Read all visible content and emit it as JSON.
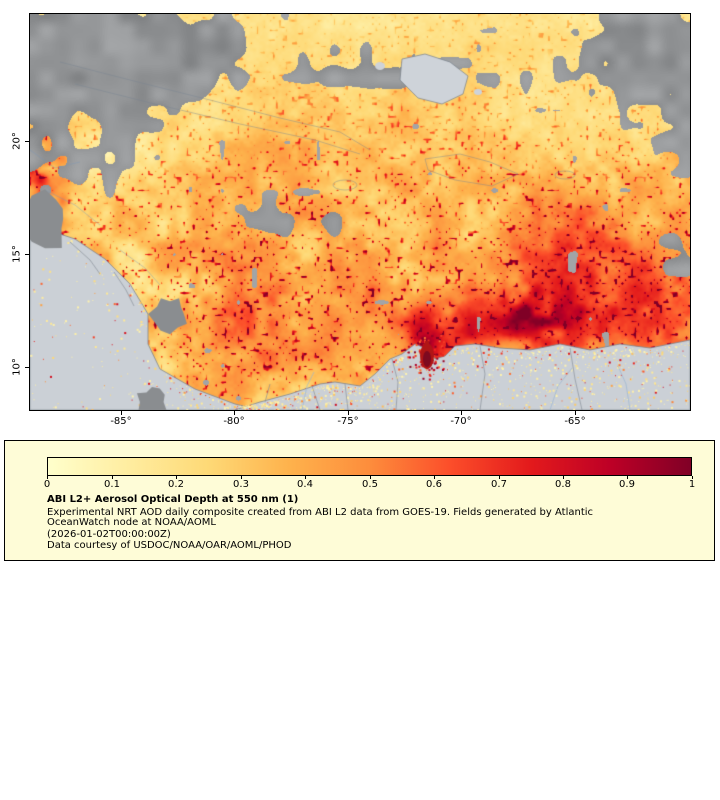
{
  "map": {
    "x_ticks": [
      "-85°",
      "-80°",
      "-75°",
      "-70°",
      "-65°"
    ],
    "y_ticks": [
      "20°",
      "15°",
      "10°"
    ]
  },
  "legend": {
    "title": "ABI L2+ Aerosol Optical Depth at 550 nm (1)",
    "description_line1": "Experimental NRT AOD daily composite created from ABI L2 data from GOES-19. Fields generated by Atlantic",
    "description_line2": "OceanWatch node at NOAA/AOML",
    "timestamp": "(2026-01-02T00:00:00Z)",
    "courtesy": "Data courtesy of USDOC/NOAA/OAR/AOML/PHOD",
    "colorbar_ticks": [
      "0",
      "0.1",
      "0.2",
      "0.3",
      "0.4",
      "0.5",
      "0.6",
      "0.7",
      "0.8",
      "0.9",
      "1"
    ]
  },
  "colors": {
    "legend_background": "#fefcd7",
    "no_data_gray": "#8a8d90",
    "land_gray": "#cbd0d6"
  },
  "chart_data": {
    "type": "heatmap",
    "title": "ABI L2+ Aerosol Optical Depth at 550 nm (1)",
    "value_range": [
      0,
      1
    ],
    "colorbar_tick_values": [
      0,
      0.1,
      0.2,
      0.3,
      0.4,
      0.5,
      0.6,
      0.7,
      0.8,
      0.9,
      1
    ],
    "colormap_stops": [
      "#ffffcc",
      "#ffeda0",
      "#fed976",
      "#feb24c",
      "#fd8d3c",
      "#fc4e2a",
      "#e31a1c",
      "#bd0026",
      "#800026"
    ],
    "x_axis_ticks": [
      "-85°",
      "-80°",
      "-75°",
      "-70°",
      "-65°"
    ],
    "y_axis_ticks": [
      "20°",
      "15°",
      "10°"
    ]
  }
}
